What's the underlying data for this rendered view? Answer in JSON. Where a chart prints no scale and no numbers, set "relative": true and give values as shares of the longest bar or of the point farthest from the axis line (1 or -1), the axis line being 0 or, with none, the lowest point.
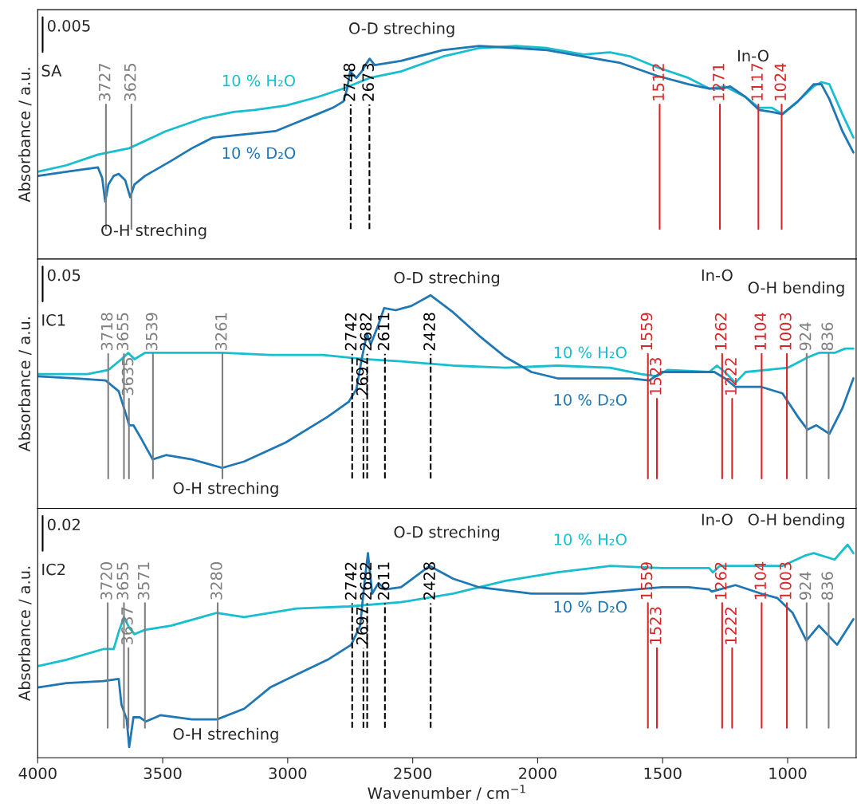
{
  "chart_data": [
    {
      "type": "line",
      "title": "SA",
      "ylabel": "Absorbance / a.u.",
      "relative": true,
      "xlim": [
        4000,
        726
      ],
      "xticks": [
        4000,
        3500,
        3000,
        2500,
        2000,
        1500,
        1000
      ],
      "tick_labels": false,
      "grid": false,
      "legend": false,
      "annotations": [
        "0.005",
        "O-D streching",
        "O-H streching",
        "In-O"
      ],
      "ref_lines": [
        {
          "axis": "x",
          "value": 3727,
          "label": "3727",
          "color": "#7f7f7f",
          "line_style": "solid"
        },
        {
          "axis": "x",
          "value": 3625,
          "label": "3625",
          "color": "#7f7f7f",
          "line_style": "solid"
        },
        {
          "axis": "x",
          "value": 2748,
          "label": "2748",
          "color": "#000000",
          "line_style": "dashed"
        },
        {
          "axis": "x",
          "value": 2673,
          "label": "2673",
          "color": "#000000",
          "line_style": "dashed"
        },
        {
          "axis": "x",
          "value": 1512,
          "label": "1512",
          "color": "#d62728",
          "line_style": "solid"
        },
        {
          "axis": "x",
          "value": 1271,
          "label": "1271",
          "color": "#d62728",
          "line_style": "solid"
        },
        {
          "axis": "x",
          "value": 1117,
          "label": "1117",
          "color": "#d62728",
          "line_style": "solid"
        },
        {
          "axis": "x",
          "value": 1024,
          "label": "1024",
          "color": "#d62728",
          "line_style": "solid"
        }
      ],
      "series": [
        {
          "name": "10 % H₂O",
          "color": "#17becf",
          "x": [
            4000,
            3885,
            3759,
            3634,
            3487,
            3341,
            3216,
            3132,
            3007,
            2881,
            2777,
            2672,
            2547,
            2380,
            2234,
            2087,
            1962,
            1816,
            1711,
            1627,
            1523,
            1397,
            1314,
            1251,
            1168,
            1115,
            1063,
            1021,
            959,
            896,
            865,
            833,
            781,
            737
          ],
          "values": [
            0.41,
            0.44,
            0.49,
            0.52,
            0.6,
            0.66,
            0.69,
            0.7,
            0.72,
            0.76,
            0.8,
            0.85,
            0.88,
            0.95,
            0.99,
            1.0,
            0.99,
            0.96,
            0.97,
            0.95,
            0.9,
            0.85,
            0.8,
            0.81,
            0.76,
            0.71,
            0.71,
            0.68,
            0.74,
            0.81,
            0.83,
            0.82,
            0.68,
            0.57
          ]
        },
        {
          "name": "10 % D₂O",
          "color": "#1f77b4",
          "x": [
            4000,
            3885,
            3759,
            3742,
            3730,
            3717,
            3696,
            3676,
            3650,
            3630,
            3613,
            3571,
            3467,
            3383,
            3299,
            3216,
            3132,
            3049,
            2965,
            2881,
            2819,
            2777,
            2762,
            2750,
            2725,
            2704,
            2689,
            2672,
            2652,
            2547,
            2380,
            2234,
            2087,
            1962,
            1816,
            1669,
            1523,
            1397,
            1314,
            1262,
            1230,
            1168,
            1115,
            1063,
            1021,
            959,
            896,
            865,
            833,
            781,
            737
          ],
          "values": [
            0.39,
            0.41,
            0.43,
            0.38,
            0.27,
            0.35,
            0.39,
            0.4,
            0.37,
            0.29,
            0.35,
            0.39,
            0.46,
            0.52,
            0.57,
            0.58,
            0.59,
            0.6,
            0.64,
            0.68,
            0.71,
            0.74,
            0.8,
            0.88,
            0.85,
            0.88,
            0.91,
            0.94,
            0.91,
            0.93,
            0.98,
            1.0,
            0.99,
            0.98,
            0.95,
            0.92,
            0.86,
            0.82,
            0.8,
            0.8,
            0.81,
            0.76,
            0.7,
            0.69,
            0.68,
            0.74,
            0.82,
            0.82,
            0.75,
            0.6,
            0.5
          ]
        }
      ]
    },
    {
      "type": "line",
      "title": "IC1",
      "ylabel": "Absorbance / a.u.",
      "relative": true,
      "xlim": [
        4000,
        726
      ],
      "xticks": [
        4000,
        3500,
        3000,
        2500,
        2000,
        1500,
        1000
      ],
      "tick_labels": false,
      "grid": false,
      "legend": false,
      "annotations": [
        "0.05",
        "O-D streching",
        "O-H streching",
        "O-H bending",
        "In-O"
      ],
      "ref_lines": [
        {
          "axis": "x",
          "value": 3718,
          "label": "3718",
          "color": "#7f7f7f",
          "line_style": "solid"
        },
        {
          "axis": "x",
          "value": 3655,
          "label": "3655",
          "color": "#7f7f7f",
          "line_style": "solid"
        },
        {
          "axis": "x",
          "value": 3635,
          "label": "3635",
          "color": "#7f7f7f",
          "line_style": "solid"
        },
        {
          "axis": "x",
          "value": 3539,
          "label": "3539",
          "color": "#7f7f7f",
          "line_style": "solid"
        },
        {
          "axis": "x",
          "value": 3261,
          "label": "3261",
          "color": "#7f7f7f",
          "line_style": "solid"
        },
        {
          "axis": "x",
          "value": 2742,
          "label": "2742",
          "color": "#000000",
          "line_style": "dashed"
        },
        {
          "axis": "x",
          "value": 2697,
          "label": "2697",
          "color": "#000000",
          "line_style": "dashed"
        },
        {
          "axis": "x",
          "value": 2682,
          "label": "2682",
          "color": "#000000",
          "line_style": "dashed"
        },
        {
          "axis": "x",
          "value": 2611,
          "label": "2611",
          "color": "#000000",
          "line_style": "dashed"
        },
        {
          "axis": "x",
          "value": 2428,
          "label": "2428",
          "color": "#000000",
          "line_style": "dashed"
        },
        {
          "axis": "x",
          "value": 1559,
          "label": "1559",
          "color": "#d62728",
          "line_style": "solid"
        },
        {
          "axis": "x",
          "value": 1523,
          "label": "1523",
          "color": "#d62728",
          "line_style": "solid"
        },
        {
          "axis": "x",
          "value": 1262,
          "label": "1262",
          "color": "#d62728",
          "line_style": "solid"
        },
        {
          "axis": "x",
          "value": 1222,
          "label": "1222",
          "color": "#d62728",
          "line_style": "solid"
        },
        {
          "axis": "x",
          "value": 1104,
          "label": "1104",
          "color": "#d62728",
          "line_style": "solid"
        },
        {
          "axis": "x",
          "value": 1003,
          "label": "1003",
          "color": "#d62728",
          "line_style": "solid"
        },
        {
          "axis": "x",
          "value": 924,
          "label": "924",
          "color": "#7f7f7f",
          "line_style": "solid"
        },
        {
          "axis": "x",
          "value": 836,
          "label": "836",
          "color": "#7f7f7f",
          "line_style": "solid"
        }
      ],
      "series": [
        {
          "name": "10 % H₂O",
          "color": "#17becf",
          "x": [
            4000,
            3801,
            3717,
            3665,
            3638,
            3613,
            3571,
            3446,
            3258,
            3070,
            2860,
            2693,
            2547,
            2338,
            2129,
            1920,
            1711,
            1586,
            1523,
            1481,
            1314,
            1283,
            1251,
            1209,
            1168,
            1084,
            1000,
            917,
            875,
            812,
            770,
            737
          ],
          "values": [
            0.63,
            0.63,
            0.65,
            0.7,
            0.73,
            0.7,
            0.73,
            0.73,
            0.73,
            0.72,
            0.72,
            0.7,
            0.69,
            0.67,
            0.66,
            0.67,
            0.66,
            0.63,
            0.62,
            0.65,
            0.64,
            0.67,
            0.64,
            0.59,
            0.64,
            0.65,
            0.66,
            0.71,
            0.73,
            0.73,
            0.75,
            0.75
          ]
        },
        {
          "name": "10 % D₂O",
          "color": "#1f77b4",
          "x": [
            4000,
            3843,
            3728,
            3676,
            3644,
            3634,
            3617,
            3592,
            3540,
            3487,
            3383,
            3262,
            3174,
            3007,
            2840,
            2756,
            2725,
            2704,
            2683,
            2668,
            2641,
            2614,
            2568,
            2505,
            2428,
            2338,
            2234,
            2129,
            2025,
            1920,
            1816,
            1627,
            1554,
            1502,
            1397,
            1293,
            1251,
            1209,
            1105,
            1021,
            959,
            921,
            885,
            833,
            781,
            737
          ],
          "values": [
            0.62,
            0.61,
            0.6,
            0.55,
            0.43,
            0.39,
            0.39,
            0.34,
            0.23,
            0.25,
            0.23,
            0.19,
            0.22,
            0.31,
            0.43,
            0.5,
            0.56,
            0.7,
            0.82,
            0.77,
            0.85,
            0.94,
            0.93,
            0.95,
            1.0,
            0.92,
            0.81,
            0.71,
            0.64,
            0.61,
            0.61,
            0.61,
            0.6,
            0.64,
            0.64,
            0.64,
            0.61,
            0.57,
            0.57,
            0.54,
            0.43,
            0.37,
            0.39,
            0.35,
            0.47,
            0.61
          ]
        }
      ]
    },
    {
      "type": "line",
      "title": "IC2",
      "ylabel": "Absorbance / a.u.",
      "xlabel": "Wavenumber / cm$^{−1}$",
      "relative": true,
      "xlim": [
        4000,
        726
      ],
      "xticks": [
        4000,
        3500,
        3000,
        2500,
        2000,
        1500,
        1000
      ],
      "tick_labels": "x",
      "grid": false,
      "legend": false,
      "annotations": [
        "0.02",
        "O-D streching",
        "O-H streching",
        "O-H bending",
        "In-O"
      ],
      "ref_lines": [
        {
          "axis": "x",
          "value": 3720,
          "label": "3720",
          "color": "#7f7f7f",
          "line_style": "solid"
        },
        {
          "axis": "x",
          "value": 3655,
          "label": "3655",
          "color": "#7f7f7f",
          "line_style": "solid"
        },
        {
          "axis": "x",
          "value": 3637,
          "label": "3637",
          "color": "#7f7f7f",
          "line_style": "solid"
        },
        {
          "axis": "x",
          "value": 3571,
          "label": "3571",
          "color": "#7f7f7f",
          "line_style": "solid"
        },
        {
          "axis": "x",
          "value": 3280,
          "label": "3280",
          "color": "#7f7f7f",
          "line_style": "solid"
        },
        {
          "axis": "x",
          "value": 2742,
          "label": "2742",
          "color": "#000000",
          "line_style": "dashed"
        },
        {
          "axis": "x",
          "value": 2697,
          "label": "2697",
          "color": "#000000",
          "line_style": "dashed"
        },
        {
          "axis": "x",
          "value": 2682,
          "label": "2682",
          "color": "#000000",
          "line_style": "dashed"
        },
        {
          "axis": "x",
          "value": 2611,
          "label": "2611",
          "color": "#000000",
          "line_style": "dashed"
        },
        {
          "axis": "x",
          "value": 2428,
          "label": "2428",
          "color": "#000000",
          "line_style": "dashed"
        },
        {
          "axis": "x",
          "value": 1559,
          "label": "1559",
          "color": "#d62728",
          "line_style": "solid"
        },
        {
          "axis": "x",
          "value": 1523,
          "label": "1523",
          "color": "#d62728",
          "line_style": "solid"
        },
        {
          "axis": "x",
          "value": 1262,
          "label": "1262",
          "color": "#d62728",
          "line_style": "solid"
        },
        {
          "axis": "x",
          "value": 1222,
          "label": "1222",
          "color": "#d62728",
          "line_style": "solid"
        },
        {
          "axis": "x",
          "value": 1104,
          "label": "1104",
          "color": "#d62728",
          "line_style": "solid"
        },
        {
          "axis": "x",
          "value": 1003,
          "label": "1003",
          "color": "#d62728",
          "line_style": "solid"
        },
        {
          "axis": "x",
          "value": 924,
          "label": "924",
          "color": "#7f7f7f",
          "line_style": "solid"
        },
        {
          "axis": "x",
          "value": 836,
          "label": "836",
          "color": "#7f7f7f",
          "line_style": "solid"
        }
      ],
      "series": [
        {
          "name": "10 % H₂O",
          "color": "#17becf",
          "x": [
            4000,
            3885,
            3738,
            3696,
            3676,
            3655,
            3634,
            3613,
            3571,
            3467,
            3283,
            3174,
            2965,
            2756,
            2547,
            2338,
            2129,
            1920,
            1711,
            1502,
            1314,
            1299,
            1272,
            1105,
            1021,
            927,
            896,
            812,
            760,
            737
          ],
          "values": [
            0.43,
            0.46,
            0.51,
            0.51,
            0.59,
            0.66,
            0.61,
            0.58,
            0.6,
            0.62,
            0.68,
            0.66,
            0.7,
            0.71,
            0.73,
            0.77,
            0.83,
            0.87,
            0.9,
            0.89,
            0.89,
            0.87,
            0.9,
            0.9,
            0.9,
            0.95,
            0.96,
            0.93,
            1.0,
            0.96
          ]
        },
        {
          "name": "10 % D₂O",
          "color": "#1f77b4",
          "x": [
            4000,
            3885,
            3738,
            3676,
            3665,
            3644,
            3634,
            3617,
            3592,
            3567,
            3508,
            3383,
            3283,
            3174,
            3070,
            2965,
            2840,
            2746,
            2710,
            2693,
            2679,
            2662,
            2637,
            2610,
            2547,
            2432,
            2338,
            2234,
            2025,
            1816,
            1607,
            1502,
            1397,
            1314,
            1304,
            1209,
            1105,
            1042,
            980,
            925,
            875,
            802,
            737
          ],
          "values": [
            0.33,
            0.35,
            0.36,
            0.37,
            0.25,
            0.18,
            0.05,
            0.19,
            0.19,
            0.17,
            0.2,
            0.18,
            0.18,
            0.23,
            0.33,
            0.39,
            0.46,
            0.53,
            0.62,
            0.82,
            0.96,
            0.77,
            0.82,
            0.79,
            0.8,
            0.9,
            0.84,
            0.8,
            0.77,
            0.77,
            0.79,
            0.8,
            0.8,
            0.79,
            0.78,
            0.81,
            0.77,
            0.75,
            0.68,
            0.55,
            0.62,
            0.53,
            0.65
          ]
        }
      ]
    }
  ]
}
